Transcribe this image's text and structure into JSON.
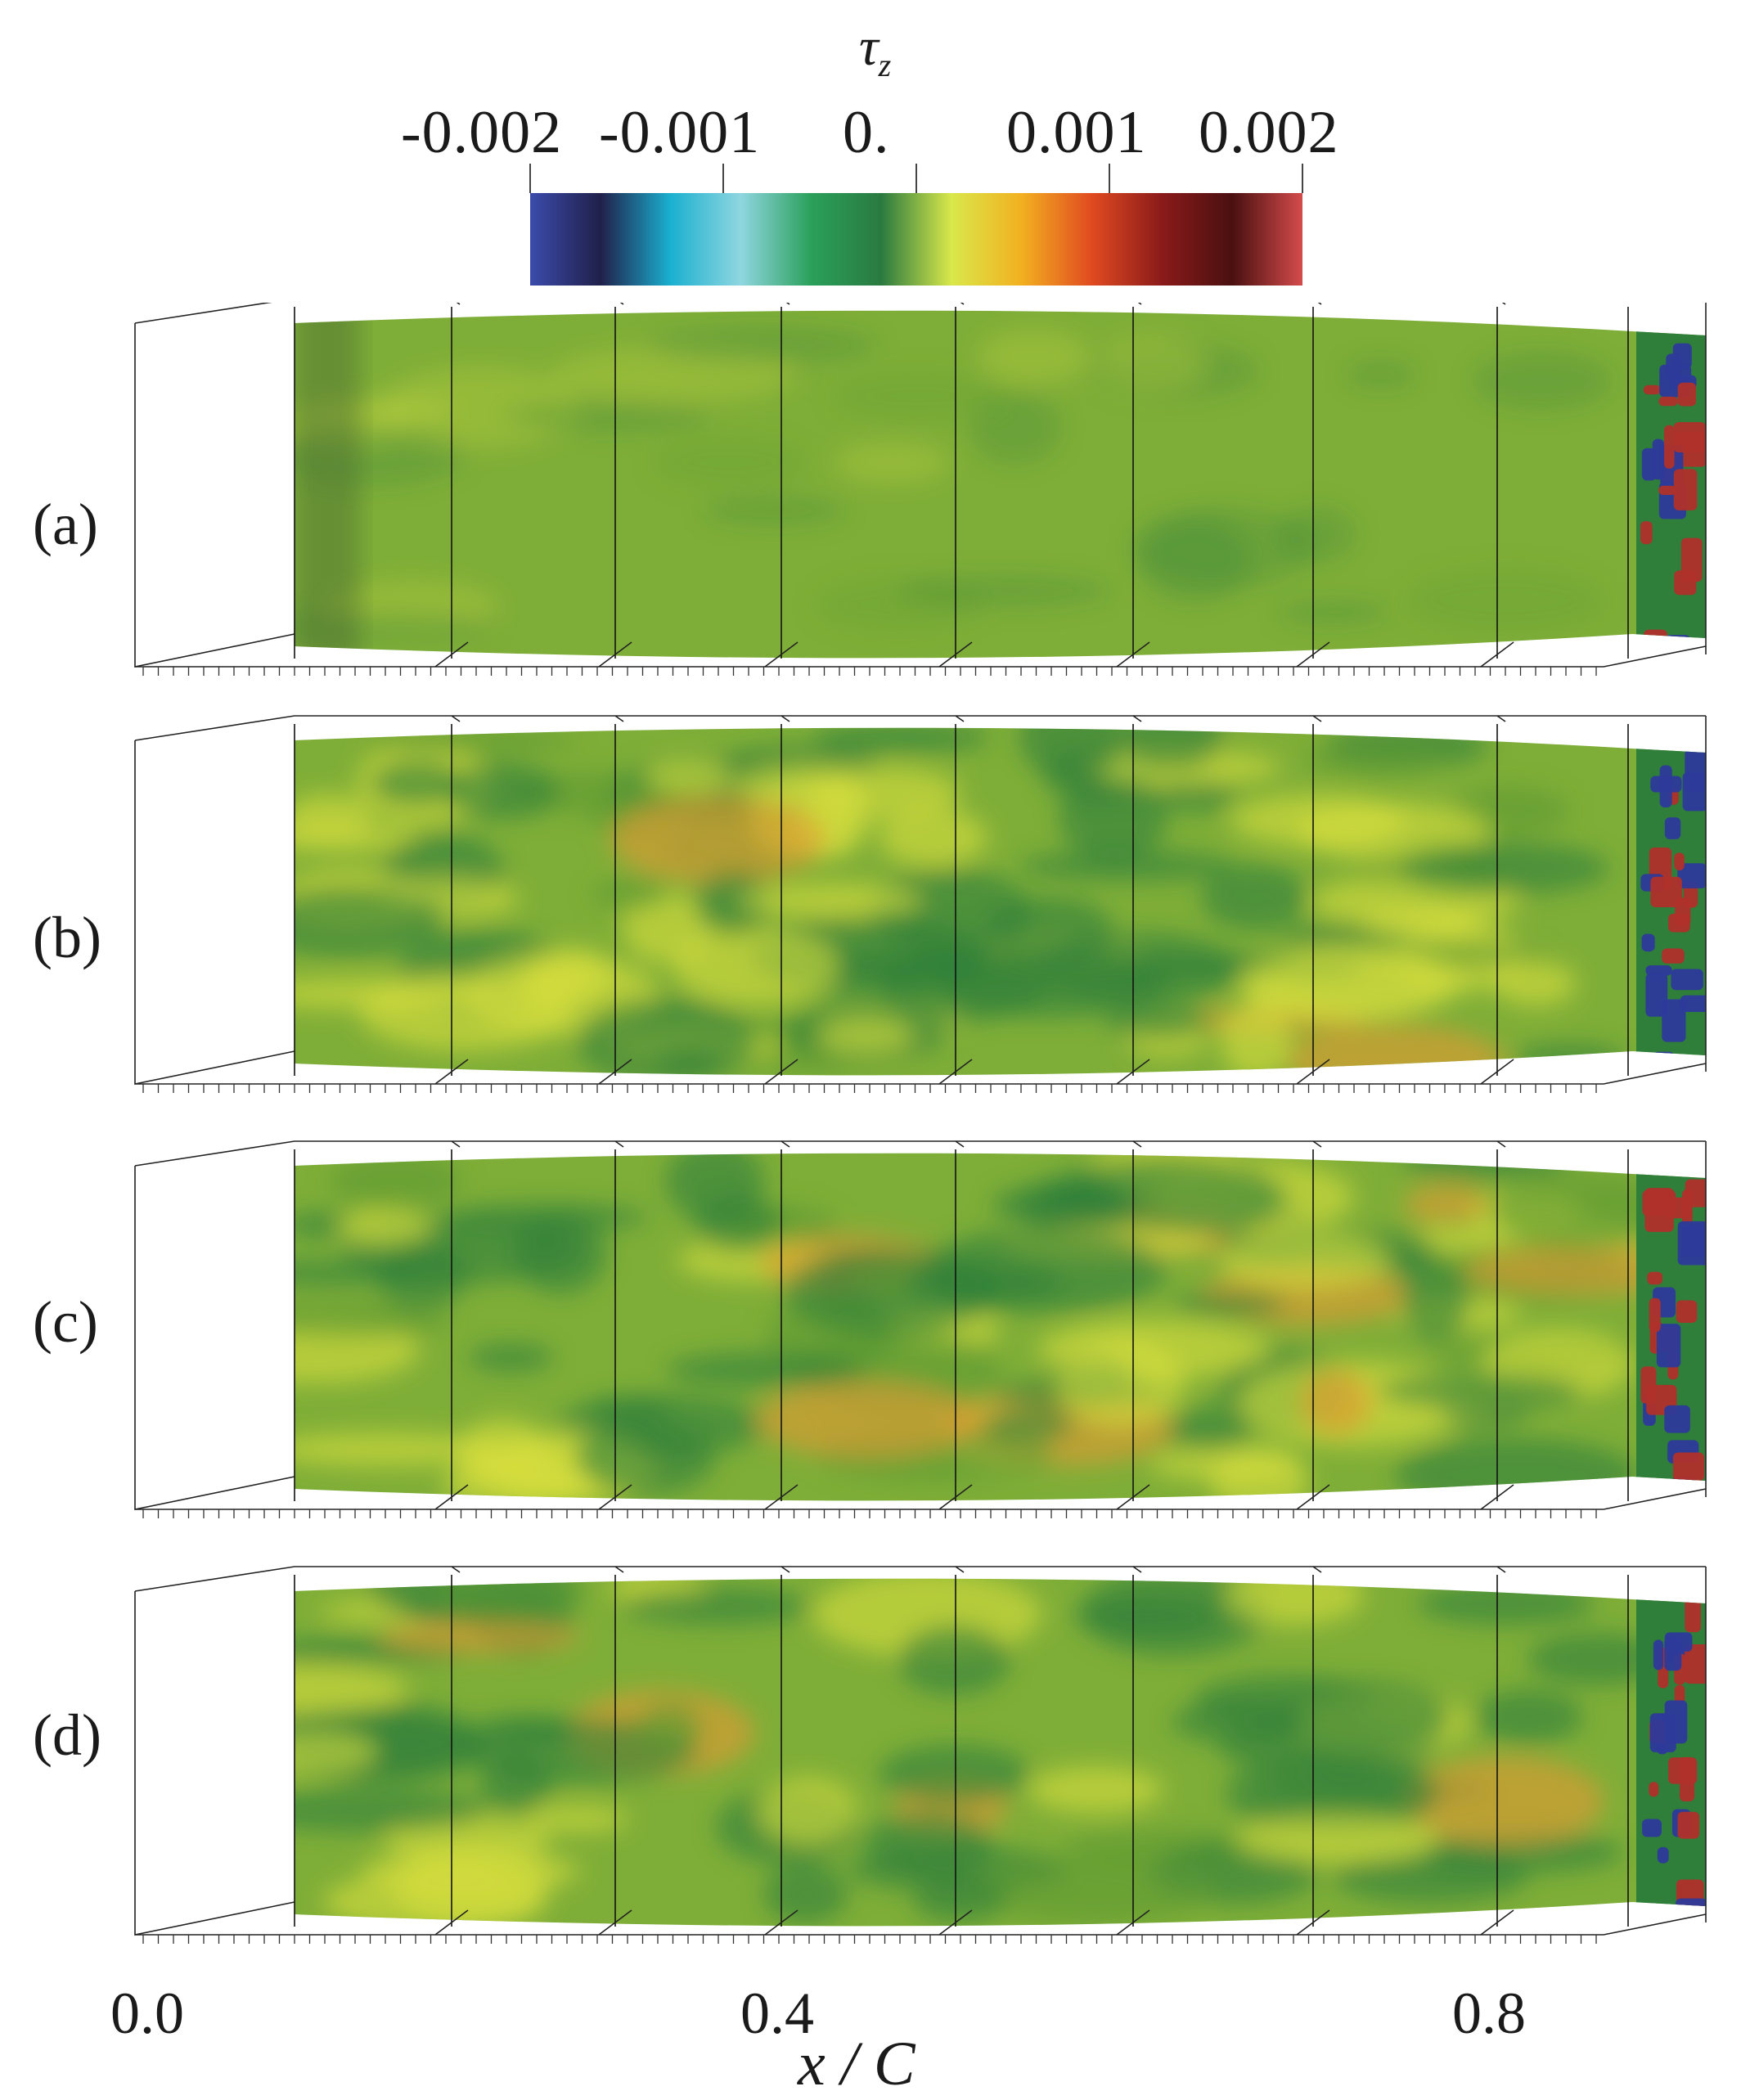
{
  "colorbar": {
    "title_symbol": "τ",
    "title_subscript": "z",
    "ticks": [
      "-0.002",
      "-0.001",
      "0.",
      "0.001",
      "0.002"
    ],
    "range": [
      -0.002,
      0.002
    ],
    "stops": [
      "#3b4bab",
      "#20204a",
      "#1ab0cf",
      "#8fd6e0",
      "#2aa05a",
      "#2a7a40",
      "#d9e84a",
      "#f2b020",
      "#e04a20",
      "#8a1a1a",
      "#4a1010",
      "#d44b4b"
    ]
  },
  "panels": [
    {
      "label": "(a)",
      "theme": "smooth"
    },
    {
      "label": "(b)",
      "theme": "turbulent"
    },
    {
      "label": "(c)",
      "theme": "turbulent"
    },
    {
      "label": "(d)",
      "theme": "moderate"
    }
  ],
  "x_axis": {
    "ticks": [
      "0.0",
      "0.4",
      "0.8"
    ],
    "title": "x / C"
  },
  "colors": {
    "base_green": "#7fae38",
    "dark_green": "#2f7e3a",
    "yellow": "#d8df3e",
    "red": "#b0302a",
    "blue": "#2d3a9a"
  }
}
